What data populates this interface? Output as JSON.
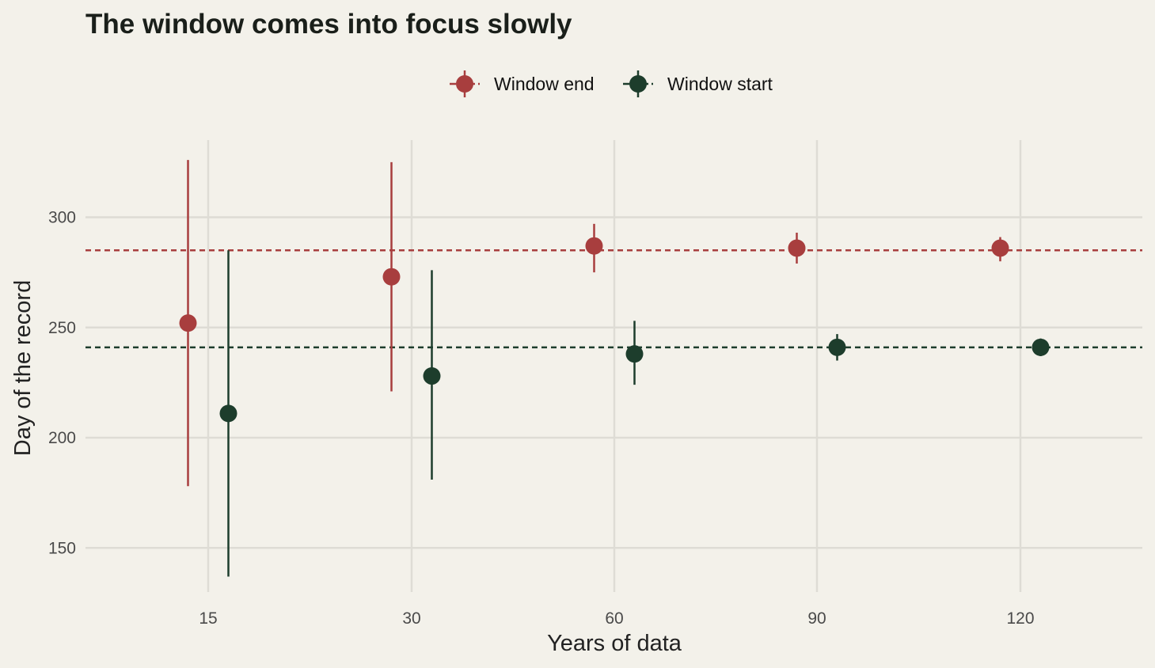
{
  "chart_data": {
    "type": "scatter",
    "title": "The window comes into focus slowly",
    "xlabel": "Years of data",
    "ylabel": "Day of the record",
    "categories": [
      "15",
      "30",
      "60",
      "90",
      "120"
    ],
    "yticks": [
      150,
      200,
      250,
      300
    ],
    "ylim": [
      130,
      335
    ],
    "grid": true,
    "legend_position": "top",
    "series": [
      {
        "name": "Window end",
        "color": "#a83e3e",
        "values": [
          252,
          273,
          287,
          286,
          286
        ],
        "lower": [
          178,
          221,
          275,
          279,
          280
        ],
        "upper": [
          326,
          325,
          297,
          293,
          291
        ],
        "reference_line": 285
      },
      {
        "name": "Window start",
        "color": "#1d3d2c",
        "values": [
          211,
          228,
          238,
          241,
          241
        ],
        "lower": [
          137,
          181,
          224,
          235,
          237
        ],
        "upper": [
          285,
          276,
          253,
          247,
          245
        ],
        "reference_line": 241
      }
    ]
  }
}
